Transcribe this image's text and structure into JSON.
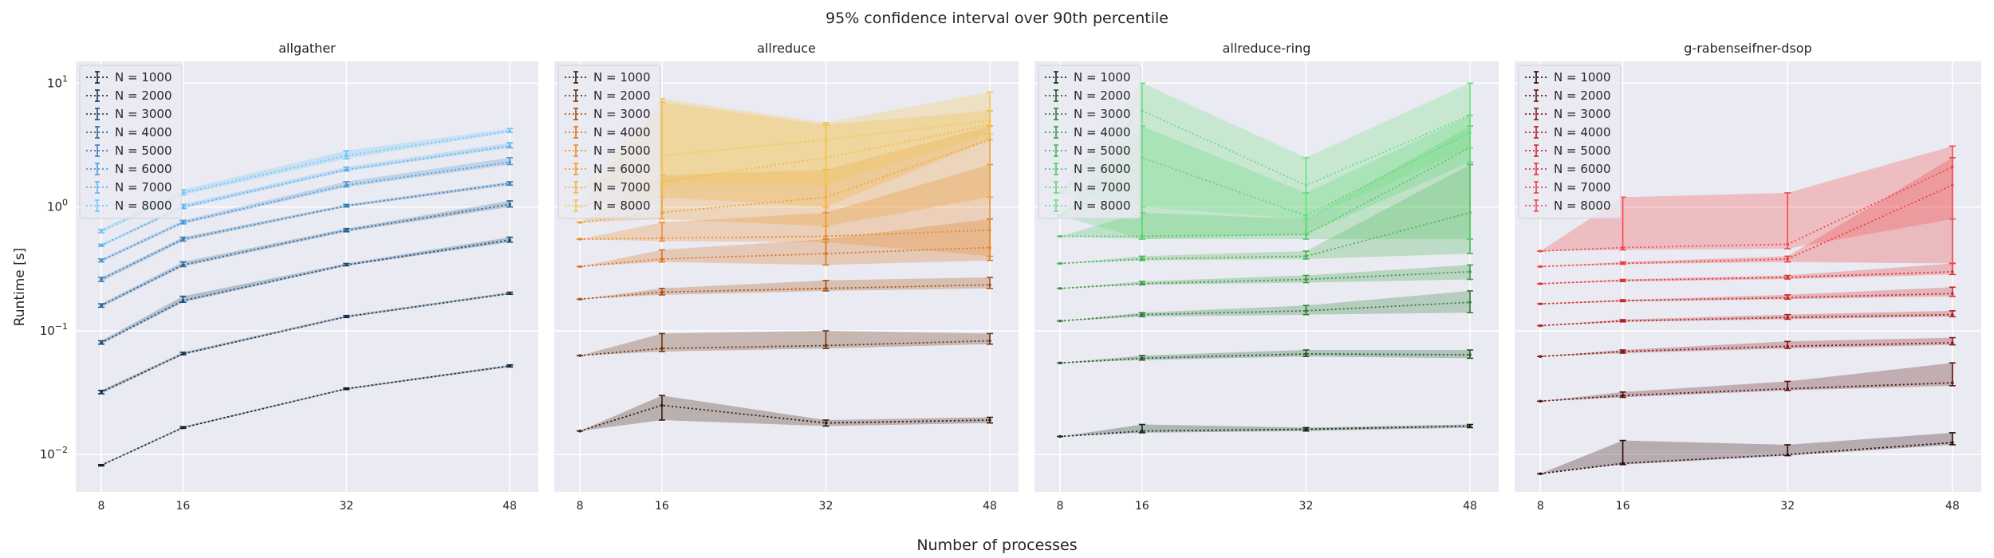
{
  "suptitle": "95% confidence interval over 90th percentile",
  "xlabel": "Number of processes",
  "ylabel": "Runtime [s]",
  "chart_data": [
    {
      "type": "line",
      "title": "allgather",
      "palette": [
        "#0b1f33",
        "#12344f",
        "#1a4b70",
        "#2a6494",
        "#3c7db6",
        "#4c98d4",
        "#5cb2ec",
        "#6cc6f8"
      ],
      "x": [
        8,
        16,
        32,
        48
      ],
      "xticks": [
        "8",
        "16",
        "32",
        "48"
      ],
      "yscale": "log",
      "ylim": [
        0.005,
        15
      ],
      "yticks": [
        "10^-2",
        "10^-1",
        "10^0",
        "10^1"
      ],
      "grid": true,
      "legend": "top-left",
      "series": [
        {
          "name": "N = 1000",
          "values": [
            0.0082,
            0.0165,
            0.034,
            0.052
          ],
          "lo": [
            0.0081,
            0.0163,
            0.0335,
            0.051
          ],
          "hi": [
            0.0083,
            0.0168,
            0.0345,
            0.053
          ]
        },
        {
          "name": "N = 2000",
          "values": [
            0.032,
            0.065,
            0.13,
            0.2
          ],
          "lo": [
            0.031,
            0.064,
            0.128,
            0.197
          ],
          "hi": [
            0.033,
            0.067,
            0.133,
            0.205
          ]
        },
        {
          "name": "N = 3000",
          "values": [
            0.08,
            0.175,
            0.34,
            0.54
          ],
          "lo": [
            0.078,
            0.17,
            0.335,
            0.52
          ],
          "hi": [
            0.083,
            0.19,
            0.35,
            0.57
          ]
        },
        {
          "name": "N = 4000",
          "values": [
            0.16,
            0.34,
            0.65,
            1.05
          ],
          "lo": [
            0.155,
            0.33,
            0.63,
            1.0
          ],
          "hi": [
            0.165,
            0.36,
            0.67,
            1.12
          ]
        },
        {
          "name": "N = 5000",
          "values": [
            0.26,
            0.55,
            1.02,
            1.55
          ],
          "lo": [
            0.25,
            0.53,
            1.0,
            1.5
          ],
          "hi": [
            0.27,
            0.57,
            1.05,
            1.6
          ]
        },
        {
          "name": "N = 6000",
          "values": [
            0.37,
            0.75,
            1.5,
            2.3
          ],
          "lo": [
            0.36,
            0.73,
            1.45,
            2.2
          ],
          "hi": [
            0.38,
            0.78,
            1.6,
            2.5
          ]
        },
        {
          "name": "N = 7000",
          "values": [
            0.49,
            1.0,
            2.0,
            3.1
          ],
          "lo": [
            0.48,
            0.97,
            1.95,
            3.0
          ],
          "hi": [
            0.5,
            1.05,
            2.1,
            3.3
          ]
        },
        {
          "name": "N = 8000",
          "values": [
            0.64,
            1.3,
            2.6,
            4.1
          ],
          "lo": [
            0.62,
            1.25,
            2.45,
            4.0
          ],
          "hi": [
            0.66,
            1.38,
            2.85,
            4.3
          ]
        }
      ]
    },
    {
      "type": "line",
      "title": "allreduce",
      "palette": [
        "#3b1a08",
        "#6b3410",
        "#a55010",
        "#d8731c",
        "#ec8a28",
        "#f29f2c",
        "#f3b43a",
        "#f4c64c"
      ],
      "x": [
        8,
        16,
        32,
        48
      ],
      "xticks": [
        "8",
        "16",
        "32",
        "48"
      ],
      "yscale": "log",
      "ylim": [
        0.005,
        15
      ],
      "grid": true,
      "legend": "top-left",
      "series": [
        {
          "name": "N = 1000",
          "values": [
            0.0155,
            0.025,
            0.018,
            0.019
          ],
          "lo": [
            0.0155,
            0.019,
            0.017,
            0.018
          ],
          "hi": [
            0.0155,
            0.03,
            0.019,
            0.02
          ]
        },
        {
          "name": "N = 2000",
          "values": [
            0.063,
            0.072,
            0.076,
            0.083
          ],
          "lo": [
            0.063,
            0.068,
            0.072,
            0.078
          ],
          "hi": [
            0.063,
            0.095,
            0.1,
            0.095
          ]
        },
        {
          "name": "N = 3000",
          "values": [
            0.18,
            0.205,
            0.22,
            0.235
          ],
          "lo": [
            0.18,
            0.195,
            0.21,
            0.22
          ],
          "hi": [
            0.18,
            0.22,
            0.255,
            0.27
          ]
        },
        {
          "name": "N = 4000",
          "values": [
            0.33,
            0.38,
            0.42,
            0.47
          ],
          "lo": [
            0.33,
            0.36,
            0.34,
            0.37
          ],
          "hi": [
            0.33,
            0.45,
            0.55,
            0.8
          ]
        },
        {
          "name": "N = 5000",
          "values": [
            0.55,
            0.56,
            0.58,
            0.65
          ],
          "lo": [
            0.55,
            0.53,
            0.52,
            0.4
          ],
          "hi": [
            0.55,
            0.75,
            0.9,
            2.2
          ]
        },
        {
          "name": "N = 6000",
          "values": [
            0.75,
            0.9,
            1.2,
            3.5
          ],
          "lo": [
            0.75,
            0.8,
            0.7,
            1.2
          ],
          "hi": [
            0.75,
            1.8,
            2.0,
            4.5
          ]
        },
        {
          "name": "N = 7000",
          "values": [
            1.0,
            1.6,
            2.5,
            4.6
          ],
          "lo": [
            1.0,
            1.2,
            1.0,
            3.5
          ],
          "hi": [
            1.0,
            7.0,
            4.6,
            6.0
          ]
        },
        {
          "name": "N = 8000",
          "values": [
            1.4,
            2.6,
            3.5,
            5.0
          ],
          "lo": [
            1.4,
            1.5,
            1.5,
            3.9
          ],
          "hi": [
            1.4,
            7.5,
            4.8,
            8.5
          ]
        }
      ]
    },
    {
      "type": "line",
      "title": "allreduce-ring",
      "palette": [
        "#0f2e14",
        "#1e5a28",
        "#2e7d38",
        "#3b9a46",
        "#47b354",
        "#52c862",
        "#5ed870",
        "#6ae07c"
      ],
      "x": [
        8,
        16,
        32,
        48
      ],
      "xticks": [
        "8",
        "16",
        "32",
        "48"
      ],
      "yscale": "log",
      "ylim": [
        0.005,
        15
      ],
      "grid": true,
      "legend": "top-left",
      "series": [
        {
          "name": "N = 1000",
          "values": [
            0.014,
            0.0155,
            0.016,
            0.017
          ],
          "lo": [
            0.014,
            0.015,
            0.0155,
            0.0165
          ],
          "hi": [
            0.014,
            0.0175,
            0.0165,
            0.0175
          ]
        },
        {
          "name": "N = 2000",
          "values": [
            0.055,
            0.06,
            0.065,
            0.064
          ],
          "lo": [
            0.055,
            0.058,
            0.062,
            0.06
          ],
          "hi": [
            0.055,
            0.063,
            0.07,
            0.07
          ]
        },
        {
          "name": "N = 3000",
          "values": [
            0.12,
            0.135,
            0.145,
            0.17
          ],
          "lo": [
            0.12,
            0.13,
            0.135,
            0.14
          ],
          "hi": [
            0.12,
            0.14,
            0.16,
            0.21
          ]
        },
        {
          "name": "N = 4000",
          "values": [
            0.22,
            0.24,
            0.26,
            0.3
          ],
          "lo": [
            0.22,
            0.235,
            0.245,
            0.26
          ],
          "hi": [
            0.22,
            0.25,
            0.28,
            0.34
          ]
        },
        {
          "name": "N = 5000",
          "values": [
            0.35,
            0.38,
            0.4,
            0.9
          ],
          "lo": [
            0.35,
            0.37,
            0.38,
            0.42
          ],
          "hi": [
            0.35,
            0.4,
            0.44,
            2.2
          ]
        },
        {
          "name": "N = 6000",
          "values": [
            0.58,
            0.58,
            0.6,
            3.0
          ],
          "lo": [
            0.58,
            0.55,
            0.55,
            0.55
          ],
          "hi": [
            0.58,
            0.9,
            0.8,
            4.5
          ]
        },
        {
          "name": "N = 7000",
          "values": [
            0.85,
            2.5,
            0.85,
            4.0
          ],
          "lo": [
            0.85,
            0.55,
            0.6,
            2.3
          ],
          "hi": [
            0.85,
            4.5,
            1.3,
            5.5
          ]
        },
        {
          "name": "N = 8000",
          "values": [
            1.3,
            6.0,
            1.5,
            5.5
          ],
          "lo": [
            1.3,
            1.0,
            0.8,
            3.0
          ],
          "hi": [
            1.3,
            10.0,
            2.5,
            10.0
          ]
        }
      ]
    },
    {
      "type": "line",
      "title": "g-rabenseifner-dsop",
      "palette": [
        "#2e0808",
        "#5a1010",
        "#8a1616",
        "#b21c1c",
        "#cf2626",
        "#e23030",
        "#ee3c3c",
        "#f54848"
      ],
      "x": [
        8,
        16,
        32,
        48
      ],
      "xticks": [
        "8",
        "16",
        "32",
        "48"
      ],
      "yscale": "log",
      "ylim": [
        0.005,
        15
      ],
      "grid": true,
      "legend": "top-left",
      "series": [
        {
          "name": "N = 1000",
          "values": [
            0.007,
            0.0085,
            0.01,
            0.0125
          ],
          "lo": [
            0.007,
            0.0083,
            0.0098,
            0.012
          ],
          "hi": [
            0.007,
            0.013,
            0.012,
            0.015
          ]
        },
        {
          "name": "N = 2000",
          "values": [
            0.027,
            0.03,
            0.034,
            0.038
          ],
          "lo": [
            0.027,
            0.029,
            0.033,
            0.036
          ],
          "hi": [
            0.027,
            0.032,
            0.039,
            0.055
          ]
        },
        {
          "name": "N = 3000",
          "values": [
            0.062,
            0.068,
            0.075,
            0.08
          ],
          "lo": [
            0.062,
            0.066,
            0.072,
            0.077
          ],
          "hi": [
            0.062,
            0.07,
            0.082,
            0.088
          ]
        },
        {
          "name": "N = 4000",
          "values": [
            0.11,
            0.12,
            0.128,
            0.135
          ],
          "lo": [
            0.11,
            0.118,
            0.124,
            0.13
          ],
          "hi": [
            0.11,
            0.123,
            0.135,
            0.145
          ]
        },
        {
          "name": "N = 5000",
          "values": [
            0.165,
            0.175,
            0.185,
            0.2
          ],
          "lo": [
            0.165,
            0.172,
            0.18,
            0.19
          ],
          "hi": [
            0.165,
            0.178,
            0.195,
            0.225
          ]
        },
        {
          "name": "N = 6000",
          "values": [
            0.24,
            0.255,
            0.27,
            0.3
          ],
          "lo": [
            0.24,
            0.25,
            0.262,
            0.285
          ],
          "hi": [
            0.24,
            0.26,
            0.28,
            0.35
          ]
        },
        {
          "name": "N = 7000",
          "values": [
            0.33,
            0.35,
            0.38,
            1.5
          ],
          "lo": [
            0.33,
            0.345,
            0.36,
            0.35
          ],
          "hi": [
            0.33,
            0.36,
            0.4,
            2.5
          ]
        },
        {
          "name": "N = 8000",
          "values": [
            0.44,
            0.47,
            0.5,
            2.1
          ],
          "lo": [
            0.44,
            0.45,
            0.46,
            0.8
          ],
          "hi": [
            0.44,
            1.2,
            1.3,
            3.1
          ]
        }
      ]
    }
  ]
}
